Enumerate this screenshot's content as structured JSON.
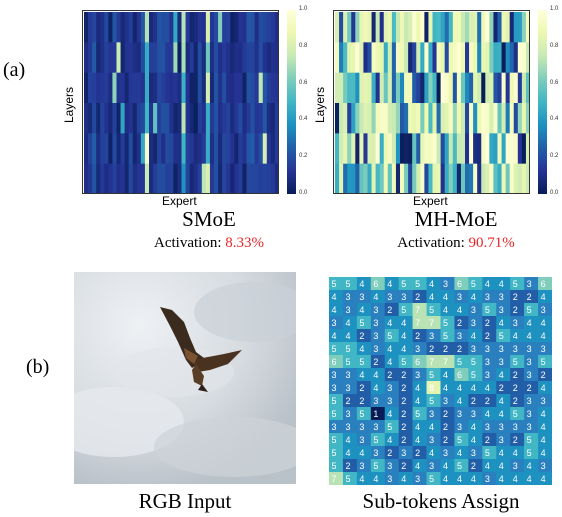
{
  "labels": {
    "panel_a": "(a)",
    "panel_b": "(b)"
  },
  "heatmaps": [
    {
      "caption": "SMoE",
      "activation_prefix": "Activation: ",
      "activation_value": "8.33%",
      "xlabel": "Expert",
      "ylabel": "Layers",
      "colorbar_ticks": [
        "1.0",
        "0.8",
        "0.6",
        "0.4",
        "0.2",
        "0.0"
      ]
    },
    {
      "caption": "MH-MoE",
      "activation_prefix": "Activation: ",
      "activation_value": "90.71%",
      "xlabel": "Expert",
      "ylabel": "Layers",
      "colorbar_ticks": [
        "1.0",
        "0.8",
        "0.6",
        "0.4",
        "0.2",
        "0.0"
      ]
    }
  ],
  "bottom": {
    "rgb_caption": "RGB Input",
    "grid_caption": "Sub-tokens Assign",
    "grid_rows": [
      [
        5,
        5,
        4,
        6,
        4,
        5,
        5,
        4,
        3,
        6,
        5,
        4,
        4,
        5,
        3,
        6
      ],
      [
        4,
        3,
        3,
        4,
        3,
        3,
        2,
        4,
        4,
        3,
        4,
        3,
        3,
        2,
        2,
        4
      ],
      [
        4,
        3,
        4,
        3,
        2,
        5,
        7,
        5,
        4,
        4,
        3,
        5,
        3,
        2,
        5,
        3
      ],
      [
        3,
        4,
        5,
        3,
        4,
        4,
        7,
        7,
        5,
        2,
        3,
        2,
        4,
        3,
        4,
        4
      ],
      [
        4,
        4,
        2,
        3,
        5,
        4,
        2,
        3,
        5,
        3,
        4,
        2,
        5,
        4,
        4,
        4
      ],
      [
        5,
        5,
        4,
        3,
        4,
        4,
        3,
        2,
        2,
        2,
        3,
        3,
        3,
        3,
        3,
        3
      ],
      [
        6,
        5,
        5,
        2,
        4,
        5,
        6,
        7,
        7,
        5,
        5,
        3,
        3,
        5,
        3,
        5
      ],
      [
        3,
        3,
        4,
        4,
        2,
        2,
        3,
        5,
        4,
        6,
        5,
        3,
        4,
        2,
        3,
        2
      ],
      [
        3,
        3,
        2,
        4,
        3,
        2,
        4,
        8,
        4,
        4,
        4,
        4,
        2,
        2,
        2,
        4
      ],
      [
        5,
        2,
        2,
        3,
        3,
        2,
        4,
        5,
        3,
        4,
        2,
        2,
        4,
        2,
        3,
        3
      ],
      [
        5,
        3,
        5,
        1,
        4,
        2,
        5,
        3,
        2,
        3,
        3,
        4,
        4,
        5,
        3,
        4
      ],
      [
        3,
        3,
        3,
        3,
        5,
        2,
        4,
        4,
        2,
        3,
        4,
        3,
        3,
        3,
        3,
        4
      ],
      [
        5,
        4,
        3,
        5,
        4,
        2,
        4,
        3,
        2,
        5,
        4,
        2,
        3,
        2,
        5,
        4
      ],
      [
        5,
        4,
        4,
        3,
        2,
        3,
        2,
        4,
        3,
        4,
        3,
        5,
        4,
        4,
        5,
        4
      ],
      [
        5,
        2,
        3,
        5,
        3,
        2,
        4,
        3,
        4,
        5,
        2,
        4,
        4,
        3,
        4,
        3
      ],
      [
        7,
        5,
        4,
        4,
        3,
        4,
        3,
        5,
        4,
        4,
        4,
        3,
        4,
        4,
        4,
        4
      ]
    ]
  }
}
